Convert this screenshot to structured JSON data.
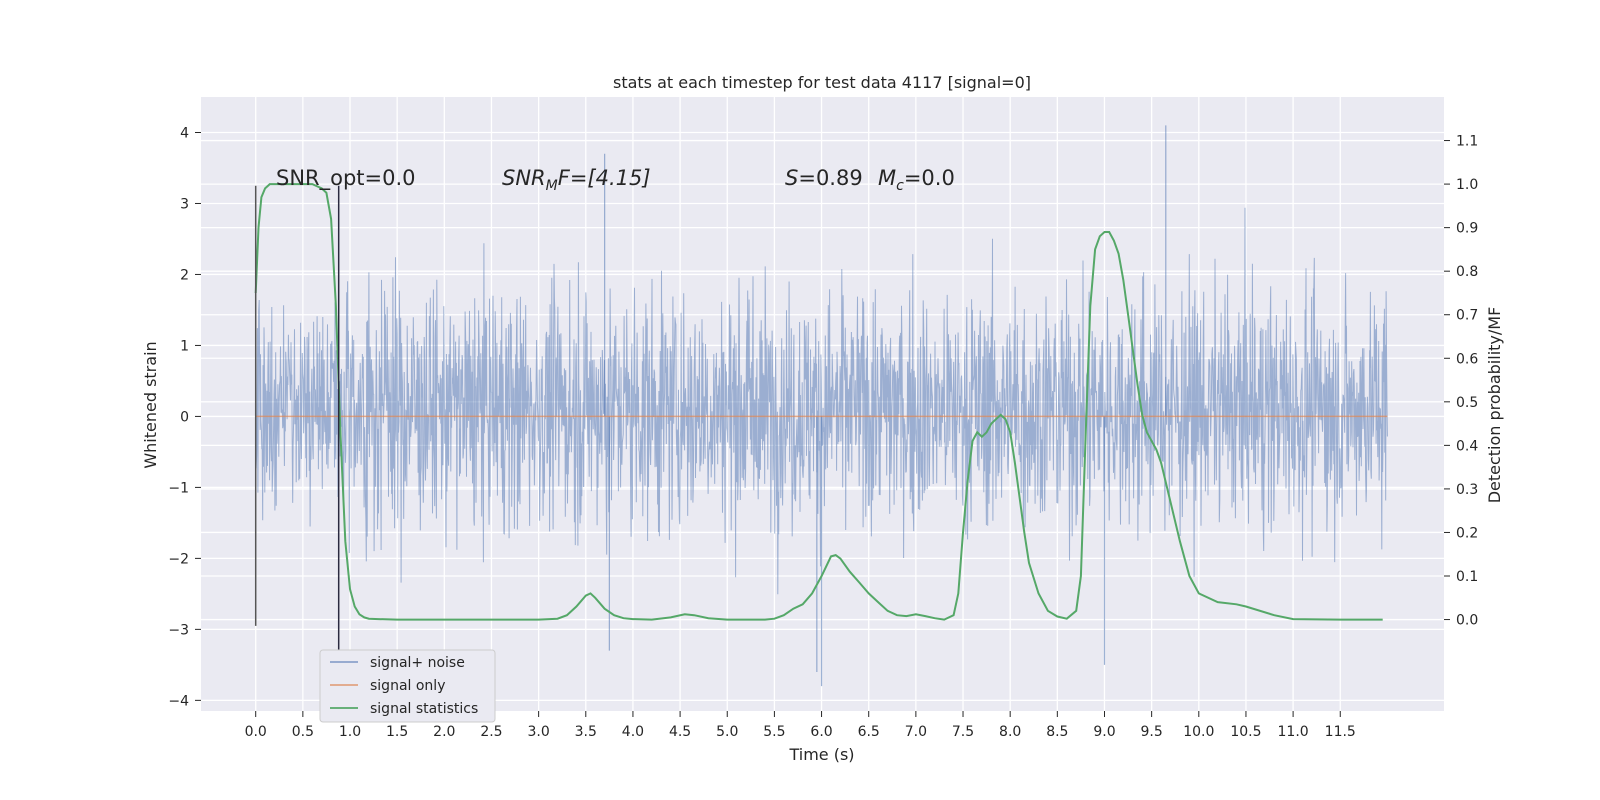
{
  "chart_data": {
    "type": "line",
    "title": "stats at each timestep for test data 4117 [signal=0]",
    "xlabel": "Time (s)",
    "ylabel_left": "Whitened strain",
    "ylabel_right": "Detection probability/MF",
    "xlim": [
      -0.58,
      12.6
    ],
    "ylim_left": [
      -4.15,
      4.5
    ],
    "ylim_right": [
      -0.21,
      1.2
    ],
    "x_ticks": [
      0.0,
      0.5,
      1.0,
      1.5,
      2.0,
      2.5,
      3.0,
      3.5,
      4.0,
      4.5,
      5.0,
      5.5,
      6.0,
      6.5,
      7.0,
      7.5,
      8.0,
      8.5,
      9.0,
      9.5,
      10.0,
      10.5,
      11.0,
      11.5
    ],
    "x_tick_labels": [
      "0.0",
      "0.5",
      "1.0",
      "1.5",
      "2.0",
      "2.5",
      "3.0",
      "3.5",
      "4.0",
      "4.5",
      "5.0",
      "5.5",
      "6.0",
      "6.5",
      "7.0",
      "7.5",
      "8.0",
      "8.5",
      "9.0",
      "9.5",
      "10.0",
      "10.5",
      "11.0",
      "11.5"
    ],
    "y_left_ticks": [
      -4,
      -3,
      -2,
      -1,
      0,
      1,
      2,
      3,
      4
    ],
    "y_left_tick_labels": [
      "−4",
      "−3",
      "−2",
      "−1",
      "0",
      "1",
      "2",
      "3",
      "4"
    ],
    "y_right_ticks": [
      0.0,
      0.1,
      0.2,
      0.3,
      0.4,
      0.5,
      0.6,
      0.7,
      0.8,
      0.9,
      1.0,
      1.1
    ],
    "y_right_tick_labels": [
      "0.0",
      "0.1",
      "0.2",
      "0.3",
      "0.4",
      "0.5",
      "0.6",
      "0.7",
      "0.8",
      "0.9",
      "1.0",
      "1.1"
    ],
    "grid": true,
    "legend_position": "lower-left",
    "annotations": {
      "snr_opt": "SNR_opt=0.0",
      "snr_mf_main": "SNR",
      "snr_mf_sub": "M",
      "snr_mf_rest": "F=[4.15]",
      "s_main": "S",
      "s_rest": "=0.89",
      "mc_main": "M",
      "mc_sub": "c",
      "mc_rest": "=0.0"
    },
    "vertical_lines": [
      0.88
    ],
    "series": [
      {
        "name": "signal+ noise",
        "axis": "left",
        "kind": "dense-noise",
        "x_range": [
          0.0,
          12.0
        ],
        "band_1sigma": [
          -1.1,
          1.35
        ],
        "extremes": [
          -3.8,
          4.1
        ],
        "color": "#4c72b0"
      },
      {
        "name": "signal only",
        "axis": "left",
        "x": [
          0.0,
          12.0
        ],
        "y": [
          0.0,
          0.0
        ],
        "color": "#dd8452"
      },
      {
        "name": "signal statistics",
        "axis": "right",
        "color": "#55a868",
        "x": [
          0.0,
          0.03,
          0.06,
          0.1,
          0.15,
          0.2,
          0.3,
          0.4,
          0.5,
          0.6,
          0.7,
          0.75,
          0.8,
          0.85,
          0.9,
          0.95,
          1.0,
          1.05,
          1.1,
          1.15,
          1.2,
          1.3,
          1.5,
          2.0,
          2.5,
          3.0,
          3.2,
          3.3,
          3.4,
          3.5,
          3.55,
          3.6,
          3.7,
          3.8,
          3.9,
          4.0,
          4.2,
          4.4,
          4.55,
          4.65,
          4.8,
          5.0,
          5.2,
          5.4,
          5.5,
          5.6,
          5.7,
          5.8,
          5.9,
          6.0,
          6.1,
          6.15,
          6.2,
          6.3,
          6.4,
          6.5,
          6.6,
          6.7,
          6.8,
          6.9,
          7.0,
          7.1,
          7.2,
          7.3,
          7.4,
          7.45,
          7.5,
          7.55,
          7.6,
          7.65,
          7.7,
          7.75,
          7.8,
          7.85,
          7.9,
          7.95,
          8.0,
          8.05,
          8.1,
          8.15,
          8.2,
          8.3,
          8.4,
          8.5,
          8.6,
          8.7,
          8.75,
          8.8,
          8.85,
          8.9,
          8.95,
          9.0,
          9.05,
          9.1,
          9.15,
          9.2,
          9.25,
          9.3,
          9.35,
          9.4,
          9.45,
          9.5,
          9.55,
          9.6,
          9.7,
          9.8,
          9.9,
          10.0,
          10.2,
          10.4,
          10.5,
          10.8,
          11.0,
          11.5,
          11.95
        ],
        "y": [
          0.75,
          0.9,
          0.97,
          0.99,
          1.0,
          1.0,
          1.0,
          1.0,
          1.0,
          1.0,
          0.99,
          0.98,
          0.92,
          0.72,
          0.42,
          0.18,
          0.07,
          0.03,
          0.012,
          0.005,
          0.002,
          0.001,
          0.0,
          0.0,
          0.0,
          0.0,
          0.002,
          0.01,
          0.03,
          0.055,
          0.06,
          0.05,
          0.025,
          0.01,
          0.003,
          0.001,
          0.0,
          0.005,
          0.012,
          0.01,
          0.003,
          0.0,
          0.0,
          0.0,
          0.002,
          0.01,
          0.025,
          0.035,
          0.06,
          0.1,
          0.145,
          0.148,
          0.14,
          0.11,
          0.085,
          0.06,
          0.04,
          0.02,
          0.01,
          0.008,
          0.012,
          0.008,
          0.003,
          0.0,
          0.01,
          0.06,
          0.2,
          0.32,
          0.41,
          0.43,
          0.42,
          0.43,
          0.45,
          0.46,
          0.47,
          0.46,
          0.43,
          0.36,
          0.28,
          0.2,
          0.13,
          0.06,
          0.02,
          0.007,
          0.002,
          0.02,
          0.1,
          0.42,
          0.72,
          0.85,
          0.88,
          0.89,
          0.89,
          0.87,
          0.84,
          0.78,
          0.7,
          0.62,
          0.54,
          0.47,
          0.43,
          0.41,
          0.39,
          0.36,
          0.27,
          0.18,
          0.1,
          0.06,
          0.04,
          0.035,
          0.03,
          0.01,
          0.001,
          0.0,
          0.0
        ]
      }
    ]
  }
}
